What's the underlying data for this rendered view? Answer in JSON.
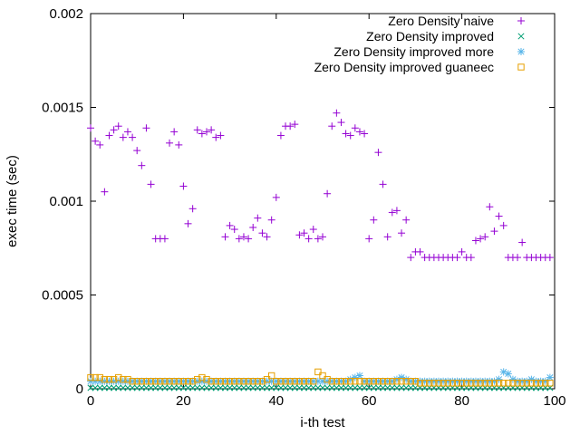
{
  "chart_data": {
    "type": "scatter",
    "xlabel": "i-th test",
    "ylabel": "exec time (sec)",
    "xlim": [
      0,
      100
    ],
    "ylim": [
      0,
      0.002
    ],
    "x_ticks": [
      "0",
      "20",
      "40",
      "60",
      "80",
      "100"
    ],
    "x_tick_values": [
      0,
      20,
      40,
      60,
      80,
      100
    ],
    "y_ticks": [
      "0",
      "0.0005",
      "0.001",
      "0.0015",
      "0.002"
    ],
    "y_tick_values": [
      0,
      0.0005,
      0.001,
      0.0015,
      0.002
    ],
    "grid": false,
    "legend_position": "top-right",
    "series": [
      {
        "name": "Zero Density naive",
        "marker": "plus",
        "color": "#9400d3",
        "x": [
          0,
          1,
          2,
          3,
          4,
          5,
          6,
          7,
          8,
          9,
          10,
          11,
          12,
          13,
          14,
          15,
          16,
          17,
          18,
          19,
          20,
          21,
          22,
          23,
          24,
          25,
          26,
          27,
          28,
          29,
          30,
          31,
          32,
          33,
          34,
          35,
          36,
          37,
          38,
          39,
          40,
          41,
          42,
          43,
          44,
          45,
          46,
          47,
          48,
          49,
          50,
          51,
          52,
          53,
          54,
          55,
          56,
          57,
          58,
          59,
          60,
          61,
          62,
          63,
          64,
          65,
          66,
          67,
          68,
          69,
          70,
          71,
          72,
          73,
          74,
          75,
          76,
          77,
          78,
          79,
          80,
          81,
          82,
          83,
          84,
          85,
          86,
          87,
          88,
          89,
          90,
          91,
          92,
          93,
          94,
          95,
          96,
          97,
          98,
          99
        ],
        "y": [
          0.00139,
          0.00132,
          0.0013,
          0.00105,
          0.00135,
          0.00138,
          0.0014,
          0.00134,
          0.00137,
          0.00134,
          0.00127,
          0.00119,
          0.00139,
          0.00109,
          0.0008,
          0.0008,
          0.0008,
          0.00131,
          0.00137,
          0.0013,
          0.00108,
          0.00088,
          0.00096,
          0.00138,
          0.00136,
          0.00137,
          0.00138,
          0.00134,
          0.00135,
          0.00081,
          0.00087,
          0.00085,
          0.0008,
          0.00081,
          0.0008,
          0.00086,
          0.00091,
          0.00083,
          0.00081,
          0.0009,
          0.00102,
          0.00135,
          0.0014,
          0.0014,
          0.00141,
          0.00082,
          0.00083,
          0.0008,
          0.00085,
          0.0008,
          0.00081,
          0.00104,
          0.0014,
          0.00147,
          0.00142,
          0.00136,
          0.00135,
          0.00139,
          0.00137,
          0.00136,
          0.0008,
          0.0009,
          0.00126,
          0.00109,
          0.00081,
          0.00094,
          0.00095,
          0.00083,
          0.0009,
          0.0007,
          0.00073,
          0.00073,
          0.0007,
          0.0007,
          0.0007,
          0.0007,
          0.0007,
          0.0007,
          0.0007,
          0.0007,
          0.00073,
          0.0007,
          0.0007,
          0.00079,
          0.0008,
          0.00081,
          0.00097,
          0.00084,
          0.00092,
          0.00087,
          0.0007,
          0.0007,
          0.0007,
          0.00078,
          0.0007,
          0.0007,
          0.0007,
          0.0007,
          0.0007,
          0.0007
        ]
      },
      {
        "name": "Zero Density improved",
        "marker": "cross",
        "color": "#009e73",
        "x": [
          0,
          1,
          2,
          3,
          4,
          5,
          6,
          7,
          8,
          9,
          10,
          11,
          12,
          13,
          14,
          15,
          16,
          17,
          18,
          19,
          20,
          21,
          22,
          23,
          24,
          25,
          26,
          27,
          28,
          29,
          30,
          31,
          32,
          33,
          34,
          35,
          36,
          37,
          38,
          39,
          40,
          41,
          42,
          43,
          44,
          45,
          46,
          47,
          48,
          49,
          50,
          51,
          52,
          53,
          54,
          55,
          56,
          57,
          58,
          59,
          60,
          61,
          62,
          63,
          64,
          65,
          66,
          67,
          68,
          69,
          70,
          71,
          72,
          73,
          74,
          75,
          76,
          77,
          78,
          79,
          80,
          81,
          82,
          83,
          84,
          85,
          86,
          87,
          88,
          89,
          90,
          91,
          92,
          93,
          94,
          95,
          96,
          97,
          98,
          99
        ],
        "y": [
          5e-06,
          5e-06,
          5e-06,
          5e-06,
          5e-06,
          5e-06,
          5e-06,
          5e-06,
          5e-06,
          5e-06,
          5e-06,
          5e-06,
          5e-06,
          5e-06,
          5e-06,
          5e-06,
          5e-06,
          5e-06,
          5e-06,
          5e-06,
          5e-06,
          5e-06,
          5e-06,
          5e-06,
          5e-06,
          5e-06,
          5e-06,
          5e-06,
          5e-06,
          5e-06,
          5e-06,
          5e-06,
          5e-06,
          5e-06,
          5e-06,
          5e-06,
          5e-06,
          5e-06,
          5e-06,
          5e-06,
          5e-06,
          5e-06,
          5e-06,
          5e-06,
          5e-06,
          5e-06,
          5e-06,
          5e-06,
          5e-06,
          5e-06,
          5e-06,
          5e-06,
          5e-06,
          5e-06,
          5e-06,
          5e-06,
          5e-06,
          5e-06,
          5e-06,
          5e-06,
          5e-06,
          5e-06,
          5e-06,
          5e-06,
          5e-06,
          5e-06,
          5e-06,
          5e-06,
          5e-06,
          5e-06,
          5e-06,
          5e-06,
          5e-06,
          5e-06,
          5e-06,
          5e-06,
          5e-06,
          5e-06,
          5e-06,
          5e-06,
          5e-06,
          5e-06,
          5e-06,
          5e-06,
          5e-06,
          5e-06,
          5e-06,
          5e-06,
          5e-06,
          5e-06,
          5e-06,
          5e-06,
          5e-06,
          5e-06,
          5e-06,
          5e-06,
          5e-06,
          5e-06,
          5e-06,
          5e-06
        ]
      },
      {
        "name": "Zero Density improved more",
        "marker": "star",
        "color": "#56b4e9",
        "x": [
          0,
          1,
          2,
          3,
          4,
          5,
          6,
          7,
          8,
          9,
          10,
          11,
          12,
          13,
          14,
          15,
          16,
          17,
          18,
          19,
          20,
          21,
          22,
          23,
          24,
          25,
          26,
          27,
          28,
          29,
          30,
          31,
          32,
          33,
          34,
          35,
          36,
          37,
          38,
          39,
          40,
          41,
          42,
          43,
          44,
          45,
          46,
          47,
          48,
          49,
          50,
          51,
          52,
          53,
          54,
          55,
          56,
          57,
          58,
          59,
          60,
          61,
          62,
          63,
          64,
          65,
          66,
          67,
          68,
          69,
          70,
          71,
          72,
          73,
          74,
          75,
          76,
          77,
          78,
          79,
          80,
          81,
          82,
          83,
          84,
          85,
          86,
          87,
          88,
          89,
          90,
          91,
          92,
          93,
          94,
          95,
          96,
          97,
          98,
          99
        ],
        "y": [
          4e-05,
          4e-05,
          4e-05,
          4e-05,
          4e-05,
          4e-05,
          4e-05,
          4e-05,
          4e-05,
          4e-05,
          4e-05,
          4e-05,
          4e-05,
          4e-05,
          4e-05,
          4e-05,
          4e-05,
          4e-05,
          4e-05,
          4e-05,
          4e-05,
          4e-05,
          4e-05,
          4e-05,
          4e-05,
          4e-05,
          4e-05,
          4e-05,
          4e-05,
          4e-05,
          4e-05,
          4e-05,
          4e-05,
          4e-05,
          4e-05,
          4e-05,
          4e-05,
          4e-05,
          4e-05,
          4e-05,
          4e-05,
          4e-05,
          4e-05,
          4e-05,
          4e-05,
          4e-05,
          4e-05,
          4e-05,
          4e-05,
          4e-05,
          4e-05,
          4e-05,
          4e-05,
          4e-05,
          4e-05,
          4e-05,
          5e-05,
          6e-05,
          7e-05,
          4e-05,
          4e-05,
          4e-05,
          4e-05,
          4e-05,
          4e-05,
          4e-05,
          5e-05,
          6e-05,
          5e-05,
          4e-05,
          4e-05,
          4e-05,
          4e-05,
          4e-05,
          4e-05,
          4e-05,
          4e-05,
          4e-05,
          4e-05,
          4e-05,
          4e-05,
          4e-05,
          4e-05,
          4e-05,
          4e-05,
          4e-05,
          4e-05,
          4e-05,
          5e-05,
          9e-05,
          8e-05,
          5e-05,
          4e-05,
          4e-05,
          4e-05,
          5e-05,
          4e-05,
          4e-05,
          4e-05,
          6e-05
        ]
      },
      {
        "name": "Zero Density improved guaneec",
        "marker": "square",
        "color": "#e69f00",
        "x": [
          0,
          1,
          2,
          3,
          4,
          5,
          6,
          7,
          8,
          9,
          10,
          11,
          12,
          13,
          14,
          15,
          16,
          17,
          18,
          19,
          20,
          21,
          22,
          23,
          24,
          25,
          26,
          27,
          28,
          29,
          30,
          31,
          32,
          33,
          34,
          35,
          36,
          37,
          38,
          39,
          40,
          41,
          42,
          43,
          44,
          45,
          46,
          47,
          48,
          49,
          50,
          51,
          52,
          53,
          54,
          55,
          56,
          57,
          58,
          59,
          60,
          61,
          62,
          63,
          64,
          65,
          66,
          67,
          68,
          69,
          70,
          71,
          72,
          73,
          74,
          75,
          76,
          77,
          78,
          79,
          80,
          81,
          82,
          83,
          84,
          85,
          86,
          87,
          88,
          89,
          90,
          91,
          92,
          93,
          94,
          95,
          96,
          97,
          98,
          99
        ],
        "y": [
          6e-05,
          6e-05,
          6e-05,
          5e-05,
          5e-05,
          5e-05,
          6e-05,
          5e-05,
          5e-05,
          4e-05,
          4e-05,
          4e-05,
          4e-05,
          4e-05,
          4e-05,
          4e-05,
          4e-05,
          4e-05,
          4e-05,
          4e-05,
          4e-05,
          4e-05,
          4e-05,
          5e-05,
          6e-05,
          5e-05,
          4e-05,
          4e-05,
          4e-05,
          4e-05,
          4e-05,
          4e-05,
          4e-05,
          4e-05,
          4e-05,
          4e-05,
          4e-05,
          4e-05,
          5e-05,
          7e-05,
          4e-05,
          4e-05,
          4e-05,
          4e-05,
          4e-05,
          4e-05,
          4e-05,
          4e-05,
          4e-05,
          9e-05,
          7e-05,
          5e-05,
          4e-05,
          4e-05,
          4e-05,
          4e-05,
          4e-05,
          4e-05,
          4e-05,
          4e-05,
          4e-05,
          4e-05,
          4e-05,
          4e-05,
          4e-05,
          4e-05,
          4e-05,
          4e-05,
          4e-05,
          4e-05,
          4e-05,
          3e-05,
          3e-05,
          3e-05,
          3e-05,
          3e-05,
          3e-05,
          3e-05,
          3e-05,
          3e-05,
          3e-05,
          3e-05,
          3e-05,
          3e-05,
          3e-05,
          3e-05,
          3e-05,
          3e-05,
          3e-05,
          3e-05,
          3e-05,
          3e-05,
          3e-05,
          3e-05,
          3e-05,
          3e-05,
          3e-05,
          3e-05,
          3e-05,
          3e-05
        ]
      }
    ]
  }
}
